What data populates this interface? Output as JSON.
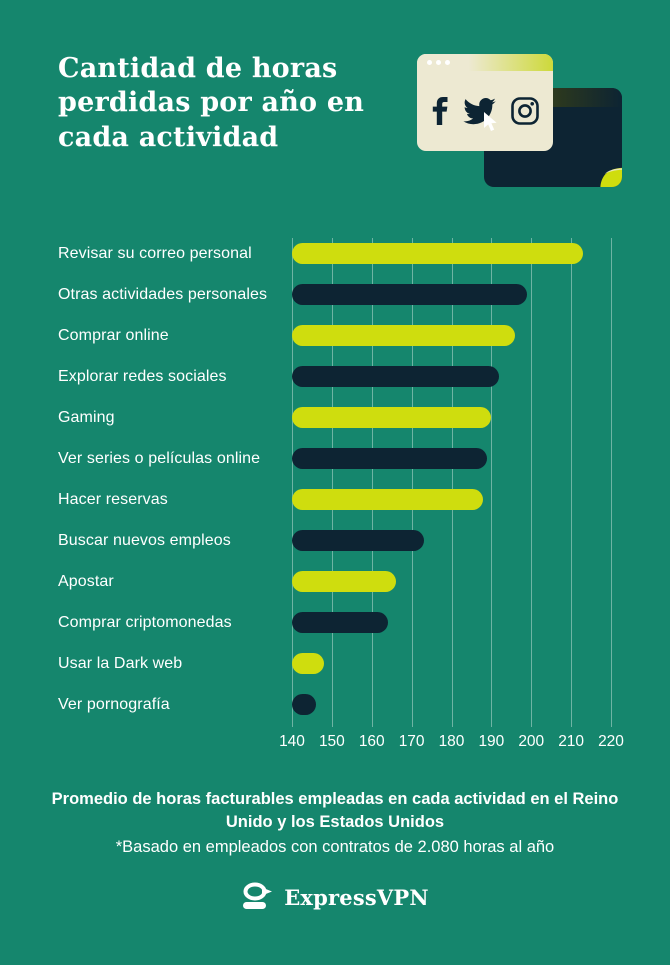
{
  "page": {
    "background": "#15866D"
  },
  "header": {
    "title": "Cantidad de horas\nperdidas por año en\ncada actividad"
  },
  "illustration": {
    "front_window_icons": [
      "facebook-icon",
      "twitter-icon",
      "instagram-icon"
    ],
    "back_window_character": "incognito-spy",
    "cursors": [
      "pointer-cursor",
      "diagonal-arrow-cursor"
    ]
  },
  "chart_data": {
    "type": "bar",
    "orientation": "horizontal",
    "title": "Cantidad de horas perdidas por año en cada actividad",
    "categories": [
      "Revisar su correo personal",
      "Otras actividades personales",
      "Comprar online",
      "Explorar redes sociales",
      "Gaming",
      "Ver series o películas online",
      "Hacer reservas",
      "Buscar nuevos empleos",
      "Apostar",
      "Comprar criptomonedas",
      "Usar la Dark web",
      "Ver pornografía"
    ],
    "values": [
      213,
      199,
      196,
      192,
      190,
      189,
      188,
      173,
      166,
      164,
      148,
      146
    ],
    "xlim": [
      140,
      220
    ],
    "xticks": [
      140,
      150,
      160,
      170,
      180,
      190,
      200,
      210,
      220
    ],
    "xlabel": "",
    "ylabel": "",
    "grid": true,
    "legend": false,
    "bar_colors_alternating": [
      "#CFDD0E",
      "#0D2433"
    ]
  },
  "footer": {
    "note_line1": "Promedio de horas facturables empleadas en cada actividad en el Reino Unido y los Estados Unidos",
    "note_line2": "*Basado en empleados con contratos de 2.080 horas al año",
    "brand": "ExpressVPN"
  },
  "colors": {
    "background": "#15866D",
    "bar_lime": "#CFDD0E",
    "bar_navy": "#0D2433",
    "window_cream": "#EDE9D2",
    "gridline": "rgba(255,255,255,0.38)",
    "text": "#FFFFFF"
  }
}
